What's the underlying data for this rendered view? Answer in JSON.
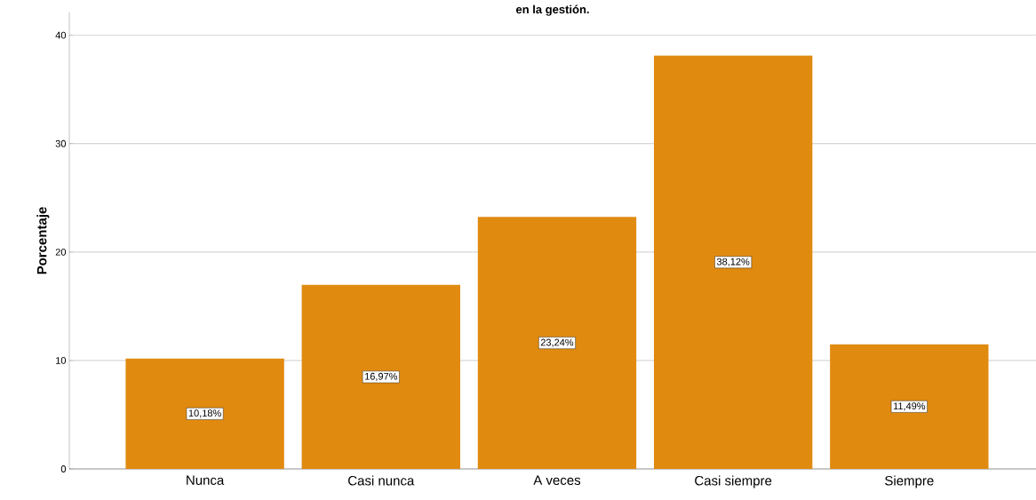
{
  "chart_data": {
    "type": "bar",
    "title": "en la gestión.",
    "ylabel": "Porcentaje",
    "categories": [
      "Nunca",
      "Casi nunca",
      "A veces",
      "Casi siempre",
      "Siempre"
    ],
    "values": [
      10.18,
      16.97,
      23.24,
      38.12,
      11.49
    ],
    "value_labels": [
      "10,18%",
      "16,97%",
      "23,24%",
      "38,12%",
      "11,49%"
    ],
    "color": "#e08a10",
    "ylim": [
      0,
      42.1
    ],
    "yticks": [
      0,
      10,
      20,
      30,
      40
    ],
    "grid": "y"
  }
}
